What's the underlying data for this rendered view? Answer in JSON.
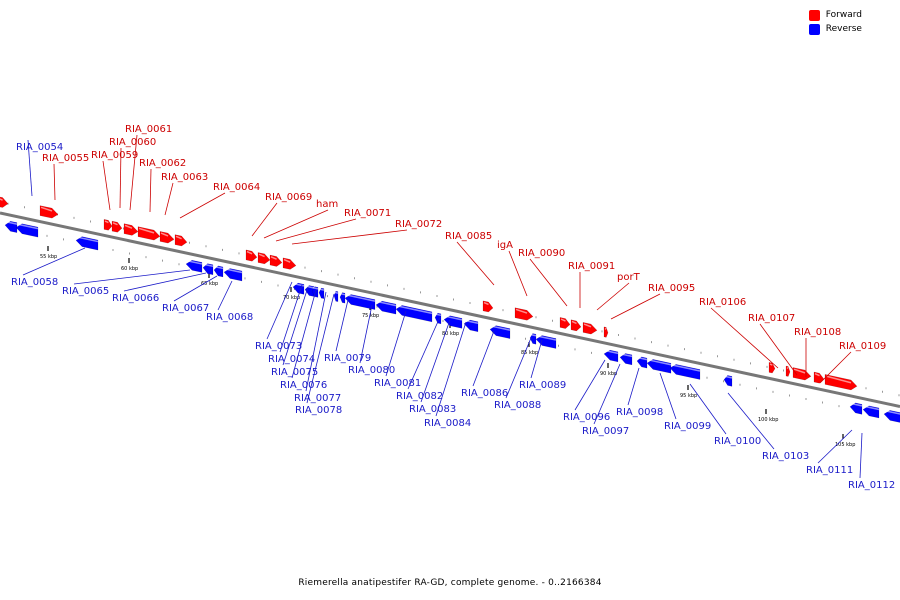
{
  "legend": {
    "forward": "Forward",
    "reverse": "Reverse"
  },
  "colors": {
    "forward": "#ff0000",
    "reverse": "#0000ff",
    "forward_label": "#cc0000",
    "reverse_label": "#1a1ac8",
    "backbone": "#777777"
  },
  "caption": "Riemerella anatipestifer RA-GD, complete genome. - 0..2166384",
  "kbp_markers": [
    {
      "text": "55 kbp",
      "kbp": 55
    },
    {
      "text": "60 kbp",
      "kbp": 60
    },
    {
      "text": "65 kbp",
      "kbp": 65
    },
    {
      "text": "70 kbp",
      "kbp": 70
    },
    {
      "text": "75 kbp",
      "kbp": 75
    },
    {
      "text": "80 kbp",
      "kbp": 80
    },
    {
      "text": "85 kbp",
      "kbp": 85
    },
    {
      "text": "90 kbp",
      "kbp": 90
    },
    {
      "text": "95 kbp",
      "kbp": 95
    },
    {
      "text": "100 kbp",
      "kbp": 100
    },
    {
      "text": "105 kbp",
      "kbp": 105
    }
  ],
  "forward_genes": [
    {
      "name": "RIA_0055"
    },
    {
      "name": "RIA_0059"
    },
    {
      "name": "RIA_0060"
    },
    {
      "name": "RIA_0061"
    },
    {
      "name": "RIA_0062"
    },
    {
      "name": "RIA_0063"
    },
    {
      "name": "RIA_0064"
    },
    {
      "name": "RIA_0069"
    },
    {
      "name": "ham"
    },
    {
      "name": "RIA_0071"
    },
    {
      "name": "RIA_0072"
    },
    {
      "name": "RIA_0085"
    },
    {
      "name": "igA"
    },
    {
      "name": "RIA_0090"
    },
    {
      "name": "RIA_0091"
    },
    {
      "name": "porT"
    },
    {
      "name": "RIA_0095"
    },
    {
      "name": "RIA_0106"
    },
    {
      "name": "RIA_0107"
    },
    {
      "name": "RIA_0108"
    },
    {
      "name": "RIA_0109"
    }
  ],
  "reverse_genes": [
    {
      "name": "RIA_0054"
    },
    {
      "name": "RIA_0058"
    },
    {
      "name": "RIA_0065"
    },
    {
      "name": "RIA_0066"
    },
    {
      "name": "RIA_0067"
    },
    {
      "name": "RIA_0068"
    },
    {
      "name": "RIA_0073"
    },
    {
      "name": "RIA_0074"
    },
    {
      "name": "RIA_0075"
    },
    {
      "name": "RIA_0076"
    },
    {
      "name": "RIA_0077"
    },
    {
      "name": "RIA_0078"
    },
    {
      "name": "RIA_0079"
    },
    {
      "name": "RIA_0080"
    },
    {
      "name": "RIA_0081"
    },
    {
      "name": "RIA_0082"
    },
    {
      "name": "RIA_0083"
    },
    {
      "name": "RIA_0084"
    },
    {
      "name": "RIA_0086"
    },
    {
      "name": "RIA_0088"
    },
    {
      "name": "RIA_0089"
    },
    {
      "name": "RIA_0096"
    },
    {
      "name": "RIA_0097"
    },
    {
      "name": "RIA_0098"
    },
    {
      "name": "RIA_0099"
    },
    {
      "name": "RIA_0100"
    },
    {
      "name": "RIA_0103"
    },
    {
      "name": "RIA_0111"
    },
    {
      "name": "RIA_0112"
    }
  ]
}
